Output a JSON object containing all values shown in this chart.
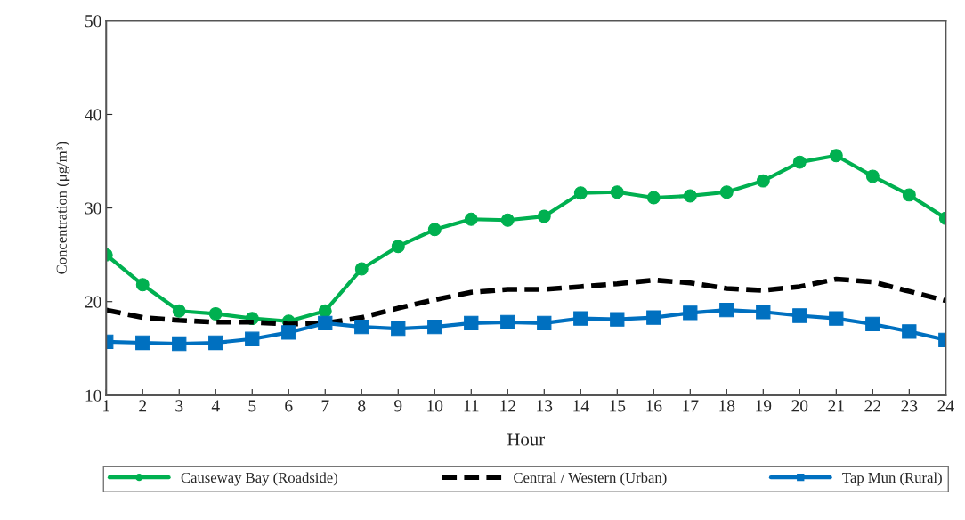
{
  "chart_data": {
    "type": "line",
    "xlabel": "Hour",
    "ylabel": "Concentration (μg/m³)",
    "x": [
      1,
      2,
      3,
      4,
      5,
      6,
      7,
      8,
      9,
      10,
      11,
      12,
      13,
      14,
      15,
      16,
      17,
      18,
      19,
      20,
      21,
      22,
      23,
      24
    ],
    "xlim": [
      1,
      24
    ],
    "xticks": [
      1,
      2,
      3,
      4,
      5,
      6,
      7,
      8,
      9,
      10,
      11,
      12,
      13,
      14,
      15,
      16,
      17,
      18,
      19,
      20,
      21,
      22,
      23,
      24
    ],
    "ylim": [
      10,
      50
    ],
    "yticks": [
      10,
      20,
      30,
      40,
      50
    ],
    "grid": false,
    "legend": "bottom",
    "series": [
      {
        "name": "Causeway Bay (Roadside)",
        "color": "#00b050",
        "marker": "circle",
        "line_style": "solid",
        "values": [
          25.0,
          21.8,
          19.0,
          18.7,
          18.2,
          17.9,
          19.0,
          23.5,
          25.9,
          27.7,
          28.8,
          28.7,
          29.1,
          31.6,
          31.7,
          31.1,
          31.3,
          31.7,
          32.9,
          34.9,
          35.6,
          33.4,
          31.4,
          28.9
        ]
      },
      {
        "name": "Central / Western (Urban)",
        "color": "#000000",
        "marker": "none",
        "line_style": "dashed",
        "values": [
          19.1,
          18.3,
          18.0,
          17.8,
          17.8,
          17.6,
          17.7,
          18.3,
          19.3,
          20.2,
          21.0,
          21.3,
          21.3,
          21.6,
          21.9,
          22.3,
          22.0,
          21.4,
          21.2,
          21.6,
          22.4,
          22.1,
          21.1,
          20.1
        ]
      },
      {
        "name": "Tap Mun (Rural)",
        "color": "#0070c0",
        "marker": "square",
        "line_style": "solid",
        "values": [
          15.7,
          15.6,
          15.5,
          15.6,
          16.0,
          16.7,
          17.7,
          17.3,
          17.1,
          17.3,
          17.7,
          17.8,
          17.7,
          18.2,
          18.1,
          18.3,
          18.8,
          19.1,
          18.9,
          18.5,
          18.2,
          17.6,
          16.8,
          15.9
        ]
      }
    ]
  }
}
